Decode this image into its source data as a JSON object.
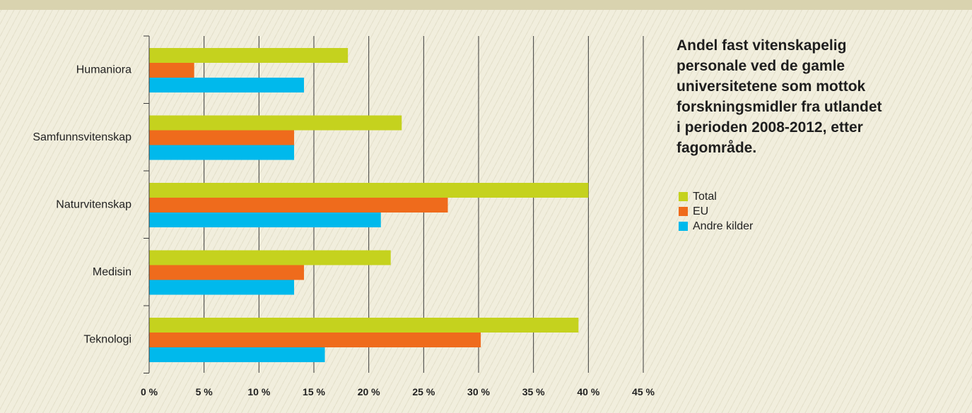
{
  "chart_data": {
    "type": "bar",
    "orientation": "horizontal",
    "title": "Andel fast vitenskapelig personale ved de gamle universitetene som mottok forskningsmidler fra utlandet i perioden 2008-2012, etter fagområde.",
    "categories": [
      "Humaniora",
      "Samfunnsvitenskap",
      "Naturvitenskap",
      "Medisin",
      "Teknologi"
    ],
    "series": [
      {
        "name": "Total",
        "color": "#c5d21e",
        "values": [
          18.1,
          23.0,
          40.0,
          22.0,
          39.1
        ]
      },
      {
        "name": "EU",
        "color": "#ef6b1c",
        "values": [
          4.1,
          13.2,
          27.2,
          14.1,
          30.2
        ]
      },
      {
        "name": "Andre kilder",
        "color": "#00b9ec",
        "values": [
          14.1,
          13.2,
          21.1,
          13.2,
          16.0
        ]
      }
    ],
    "xlim": [
      0,
      45
    ],
    "xticks": [
      0,
      5,
      10,
      15,
      20,
      25,
      30,
      35,
      40,
      45
    ],
    "xtick_labels": [
      "0 %",
      "5 %",
      "10 %",
      "15 %",
      "20 %",
      "25 %",
      "30 %",
      "35 %",
      "40 %",
      "45 %"
    ],
    "grid": true,
    "legend_position": "right"
  }
}
